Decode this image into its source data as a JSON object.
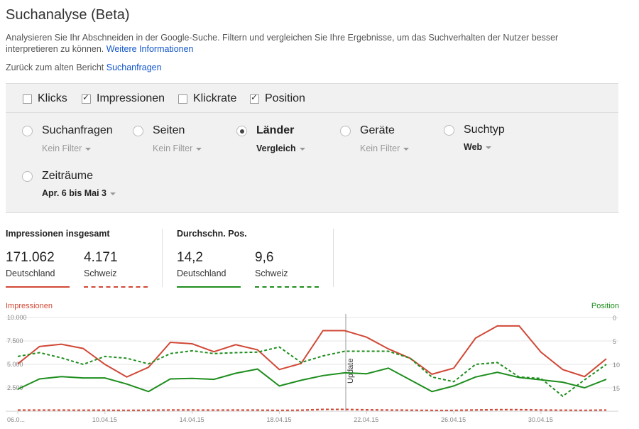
{
  "header": {
    "title": "Suchanalyse (Beta)",
    "description": "Analysieren Sie Ihr Abschneiden in der Google-Suche. Filtern und vergleichen Sie Ihre Ergebnisse, um das Suchverhalten der Nutzer besser interpretieren zu können.",
    "more_link": "Weitere Informationen",
    "back_text": "Zurück zum alten Bericht",
    "back_link": "Suchanfragen"
  },
  "metrics": [
    {
      "label": "Klicks",
      "checked": false
    },
    {
      "label": "Impressionen",
      "checked": true
    },
    {
      "label": "Klickrate",
      "checked": false
    },
    {
      "label": "Position",
      "checked": true
    }
  ],
  "dimensions": [
    {
      "label": "Suchanfragen",
      "filter": "Kein Filter",
      "selected": false
    },
    {
      "label": "Seiten",
      "filter": "Kein Filter",
      "selected": false
    },
    {
      "label": "Länder",
      "filter": "Vergleich",
      "selected": true
    },
    {
      "label": "Geräte",
      "filter": "Kein Filter",
      "selected": false
    },
    {
      "label": "Suchtyp",
      "filter": "Web",
      "selected": false
    },
    {
      "label": "Zeiträume",
      "filter": "Apr. 6 bis Mai 3",
      "selected": false
    }
  ],
  "stats": {
    "impressions_header": "Impressionen insgesamt",
    "position_header": "Durchschn. Pos.",
    "impressions": [
      {
        "value": "171.062",
        "label": "Deutschland"
      },
      {
        "value": "4.171",
        "label": "Schweiz"
      }
    ],
    "position": [
      {
        "value": "14,2",
        "label": "Deutschland"
      },
      {
        "value": "9,6",
        "label": "Schweiz"
      }
    ]
  },
  "colors": {
    "impressions": "#d14836",
    "position": "#1e8e1e",
    "grid": "#e5e5e5",
    "axis_text": "#888888"
  },
  "chart_data": {
    "type": "line",
    "left_axis_label": "Impressionen",
    "right_axis_label": "Position",
    "left_ticks": [
      "10.000",
      "7.500",
      "5.000",
      "2.500"
    ],
    "right_ticks": [
      "0",
      "5",
      "10",
      "15"
    ],
    "ylim_left": [
      0,
      10000
    ],
    "ylim_right": [
      0,
      20
    ],
    "x_ticks": [
      "06.0...",
      "10.04.15",
      "14.04.15",
      "18.04.15",
      "22.04.15",
      "26.04.15",
      "30.04.15"
    ],
    "annotation": "Update",
    "annotation_index": 14,
    "series": [
      {
        "name": "Deutschland",
        "metric": "Impressionen",
        "style": "solid",
        "values": [
          5050,
          6900,
          7150,
          6700,
          5000,
          3650,
          4700,
          7350,
          7200,
          6350,
          7100,
          6550,
          4450,
          5100,
          8600,
          8600,
          7900,
          6650,
          5650,
          3950,
          4600,
          7800,
          9100,
          9100,
          6300,
          4450,
          3700,
          5600
        ]
      },
      {
        "name": "Schweiz",
        "metric": "Impressionen",
        "style": "dashed",
        "values": [
          120,
          120,
          120,
          110,
          110,
          100,
          110,
          130,
          130,
          120,
          130,
          120,
          100,
          110,
          200,
          200,
          150,
          130,
          110,
          100,
          100,
          140,
          170,
          170,
          130,
          110,
          100,
          130
        ]
      },
      {
        "name": "Deutschland",
        "metric": "Position",
        "style": "solid",
        "values": [
          15.3,
          13.1,
          12.6,
          12.9,
          12.9,
          14.2,
          15.8,
          13.1,
          13.0,
          13.2,
          11.9,
          11.0,
          14.6,
          13.4,
          12.4,
          11.8,
          12.0,
          10.8,
          13.3,
          15.8,
          14.6,
          12.7,
          11.7,
          12.8,
          13.3,
          13.8,
          15.0,
          13.2
        ]
      },
      {
        "name": "Schweiz",
        "metric": "Position",
        "style": "dashed",
        "values": [
          8.3,
          7.5,
          8.6,
          10.0,
          8.3,
          8.7,
          9.9,
          7.7,
          7.1,
          7.7,
          7.5,
          7.4,
          6.3,
          9.6,
          8.2,
          7.2,
          7.2,
          7.2,
          8.7,
          12.7,
          13.7,
          10.0,
          9.6,
          12.7,
          13.0,
          16.8,
          13.3,
          10.0
        ]
      }
    ]
  }
}
